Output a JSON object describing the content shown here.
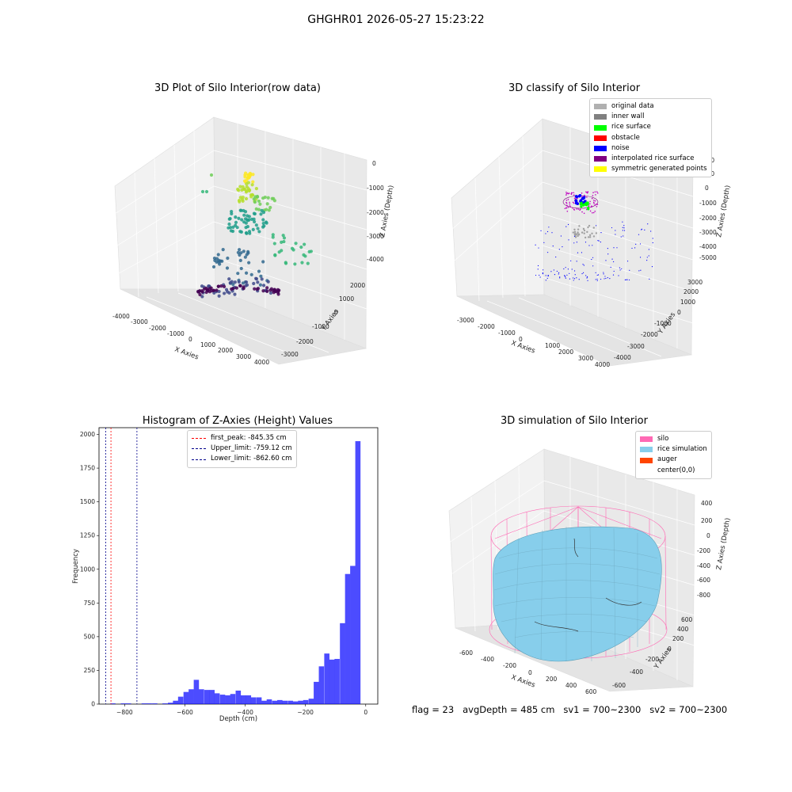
{
  "figure": {
    "title": "GHGHR01 2026-05-27 15:23:22",
    "footer": "flag = 23   avgDepth = 485 cm   sv1 = 700~2300   sv2 = 700~2300"
  },
  "panels": {
    "raw": {
      "title": "3D Plot of Silo Interior(row data)",
      "xlabel": "X Axies",
      "ylabel": "Y Axies",
      "zlabel": "Z Axies (Depth)",
      "xticks": [
        "-4000",
        "-3000",
        "-2000",
        "-1000",
        "0",
        "1000",
        "2000",
        "3000",
        "4000"
      ],
      "yticks": [
        "-3000",
        "-2000",
        "-1000",
        "0",
        "1000",
        "2000"
      ],
      "zticks": [
        "0",
        "-1000",
        "-2000",
        "-3000",
        "-4000"
      ]
    },
    "classify": {
      "title": "3D classify of Silo Interior",
      "xlabel": "X Axies",
      "ylabel": "Y Axies",
      "zlabel": "Z Axies (Depth)",
      "xticks": [
        "-3000",
        "-2000",
        "-1000",
        "0",
        "1000",
        "2000",
        "3000",
        "4000"
      ],
      "yticks": [
        "-4000",
        "-3000",
        "-2000",
        "-1000",
        "0",
        "1000",
        "2000",
        "3000"
      ],
      "zticks": [
        "2000",
        "1000",
        "0",
        "-1000",
        "-2000",
        "-3000",
        "-4000",
        "-5000"
      ],
      "legend": [
        {
          "label": "original data",
          "color": "#b0b0b0"
        },
        {
          "label": "inner wall",
          "color": "#808080"
        },
        {
          "label": "rice surface",
          "color": "#00ff00"
        },
        {
          "label": "obstacle",
          "color": "#ff0000"
        },
        {
          "label": "noise",
          "color": "#0000ff"
        },
        {
          "label": "interpolated rice surface",
          "color": "#800080"
        },
        {
          "label": "symmetric generated points",
          "color": "#ffff00"
        }
      ]
    },
    "simulation": {
      "title": "3D simulation of Silo Interior",
      "xlabel": "X Axies",
      "ylabel": "Y Axies",
      "zlabel": "Z Axies (Depth)",
      "xticks": [
        "-600",
        "-400",
        "-200",
        "0",
        "200",
        "400",
        "600"
      ],
      "yticks": [
        "-600",
        "-400",
        "-200",
        "0",
        "200",
        "400",
        "600"
      ],
      "zticks": [
        "400",
        "200",
        "0",
        "-200",
        "-400",
        "-600",
        "-800"
      ],
      "legend": [
        {
          "label": "silo",
          "color": "#ff69b4"
        },
        {
          "label": "rice simulation",
          "color": "#87ceeb"
        },
        {
          "label": "auger",
          "color": "#ff4500"
        },
        {
          "label": "center(0,0)",
          "color": "#ffffff"
        }
      ]
    }
  },
  "chart_data": {
    "type": "bar",
    "title": "Histogram of Z-Axies (Height) Values",
    "xlabel": "Depth (cm)",
    "ylabel": "Frequency",
    "xlim": [
      -885,
      40
    ],
    "ylim": [
      0,
      2050
    ],
    "xticks": [
      -800,
      -600,
      -400,
      -200,
      0
    ],
    "yticks": [
      0,
      250,
      500,
      750,
      1000,
      1250,
      1500,
      1750,
      2000
    ],
    "bar_color": "#0000ff",
    "bin_width": 17.3,
    "bin_centers": [
      -856,
      -839,
      -821,
      -804,
      -787,
      -769,
      -752,
      -735,
      -718,
      -700,
      -683,
      -666,
      -648,
      -631,
      -614,
      -596,
      -579,
      -562,
      -545,
      -527,
      -510,
      -493,
      -475,
      -458,
      -441,
      -423,
      -406,
      -389,
      -372,
      -354,
      -337,
      -320,
      -302,
      -285,
      -268,
      -250,
      -233,
      -216,
      -199,
      -181,
      -164,
      -147,
      -129,
      -112,
      -95,
      -77,
      -60,
      -43,
      -26,
      -8
    ],
    "values": [
      0,
      5,
      0,
      5,
      5,
      0,
      0,
      5,
      5,
      5,
      0,
      5,
      10,
      25,
      55,
      90,
      110,
      180,
      110,
      105,
      105,
      80,
      70,
      65,
      75,
      100,
      65,
      65,
      50,
      50,
      25,
      35,
      25,
      30,
      25,
      25,
      20,
      25,
      30,
      40,
      165,
      280,
      375,
      330,
      335,
      600,
      965,
      1025,
      1950,
      0
    ],
    "reference_lines": [
      {
        "label": "first_peak: -845.35 cm",
        "x": -845.35,
        "color": "#ff0000"
      },
      {
        "label": "Upper_limit: -759.12 cm",
        "x": -759.12,
        "color": "#00008b"
      },
      {
        "label": "Lower_limit: -862.60 cm",
        "x": -862.6,
        "color": "#00008b"
      }
    ]
  }
}
